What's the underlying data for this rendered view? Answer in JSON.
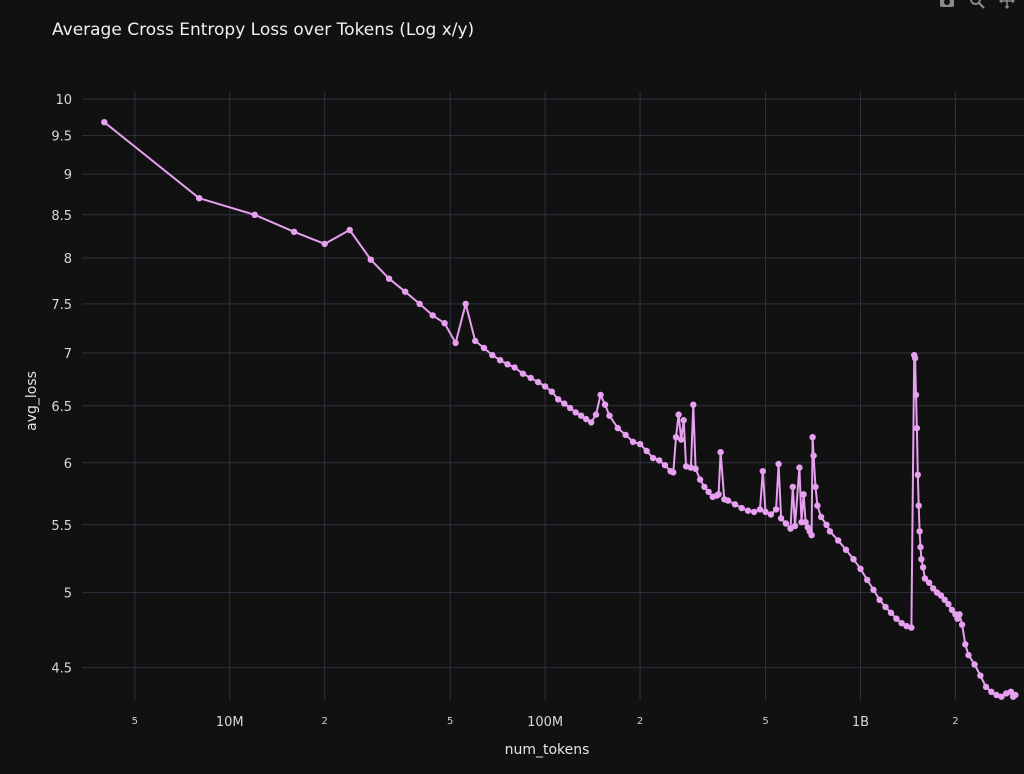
{
  "modebar": {
    "icons": [
      "camera-icon",
      "zoom-icon",
      "pan-icon"
    ],
    "color": "#8a8a8a"
  },
  "chart_data": {
    "type": "line",
    "title": "Average Cross Entropy Loss over Tokens (Log x/y)",
    "xlabel": "num_tokens",
    "ylabel": "avg_loss",
    "x_scale": "log",
    "y_scale": "log",
    "xlim": [
      3400000,
      3300000000
    ],
    "ylim": [
      4.3,
      10.1
    ],
    "grid": true,
    "legend": "none",
    "line_color": "#e79ff0",
    "background": "#111111",
    "grid_color": "#2f3240",
    "x_ticks": [
      {
        "value": 5000000,
        "label": "5",
        "minor": true
      },
      {
        "value": 10000000,
        "label": "10M",
        "minor": false
      },
      {
        "value": 20000000,
        "label": "2",
        "minor": true
      },
      {
        "value": 50000000,
        "label": "5",
        "minor": true
      },
      {
        "value": 100000000,
        "label": "100M",
        "minor": false
      },
      {
        "value": 200000000,
        "label": "2",
        "minor": true
      },
      {
        "value": 500000000,
        "label": "5",
        "minor": true
      },
      {
        "value": 1000000000,
        "label": "1B",
        "minor": false
      },
      {
        "value": 2000000000,
        "label": "2",
        "minor": true
      }
    ],
    "y_ticks": [
      {
        "value": 4.5,
        "label": "4.5"
      },
      {
        "value": 5,
        "label": "5"
      },
      {
        "value": 5.5,
        "label": "5.5"
      },
      {
        "value": 6,
        "label": "6"
      },
      {
        "value": 6.5,
        "label": "6.5"
      },
      {
        "value": 7,
        "label": "7"
      },
      {
        "value": 7.5,
        "label": "7.5"
      },
      {
        "value": 8,
        "label": "8"
      },
      {
        "value": 8.5,
        "label": "8.5"
      },
      {
        "value": 9,
        "label": "9"
      },
      {
        "value": 9.5,
        "label": "9.5"
      },
      {
        "value": 10,
        "label": "10"
      }
    ],
    "x": [
      4000000,
      8000000,
      12000000,
      16000000,
      20000000,
      24000000,
      28000000,
      32000000,
      36000000,
      40000000,
      44000000,
      48000000,
      52000000,
      56000000,
      60000000,
      64000000,
      68000000,
      72000000,
      76000000,
      80000000,
      85000000,
      90000000,
      95000000,
      100000000,
      105000000,
      110000000,
      115000000,
      120000000,
      125000000,
      130000000,
      135000000,
      140000000,
      145000000,
      150000000,
      155000000,
      160000000,
      170000000,
      180000000,
      190000000,
      200000000,
      210000000,
      220000000,
      230000000,
      240000000,
      250000000,
      255000000,
      260000000,
      265000000,
      270000000,
      275000000,
      280000000,
      290000000,
      295000000,
      300000000,
      310000000,
      320000000,
      330000000,
      340000000,
      350000000,
      355000000,
      360000000,
      370000000,
      380000000,
      400000000,
      420000000,
      440000000,
      460000000,
      480000000,
      490000000,
      500000000,
      520000000,
      540000000,
      550000000,
      560000000,
      580000000,
      600000000,
      610000000,
      620000000,
      640000000,
      650000000,
      660000000,
      670000000,
      680000000,
      690000000,
      700000000,
      705000000,
      710000000,
      720000000,
      730000000,
      750000000,
      780000000,
      800000000,
      850000000,
      900000000,
      950000000,
      1000000000,
      1050000000,
      1100000000,
      1150000000,
      1200000000,
      1250000000,
      1300000000,
      1350000000,
      1400000000,
      1450000000,
      1480000000,
      1490000000,
      1500000000,
      1510000000,
      1520000000,
      1530000000,
      1540000000,
      1550000000,
      1560000000,
      1580000000,
      1600000000,
      1650000000,
      1700000000,
      1750000000,
      1800000000,
      1850000000,
      1900000000,
      1950000000,
      2000000000,
      2030000000,
      2060000000,
      2100000000,
      2150000000,
      2200000000,
      2300000000,
      2400000000,
      2500000000,
      2600000000,
      2700000000,
      2800000000,
      2900000000,
      3000000000,
      3050000000,
      3100000000
    ],
    "values": [
      9.68,
      8.7,
      8.5,
      8.3,
      8.16,
      8.32,
      7.98,
      7.77,
      7.63,
      7.5,
      7.38,
      7.3,
      7.1,
      7.5,
      7.12,
      7.05,
      6.98,
      6.93,
      6.89,
      6.86,
      6.8,
      6.76,
      6.72,
      6.68,
      6.63,
      6.56,
      6.52,
      6.48,
      6.44,
      6.41,
      6.38,
      6.35,
      6.42,
      6.6,
      6.51,
      6.41,
      6.3,
      6.24,
      6.18,
      6.16,
      6.1,
      6.04,
      6.02,
      5.98,
      5.93,
      5.92,
      6.22,
      6.42,
      6.2,
      6.37,
      5.97,
      5.96,
      6.51,
      5.95,
      5.86,
      5.8,
      5.76,
      5.72,
      5.73,
      5.74,
      6.09,
      5.7,
      5.69,
      5.66,
      5.63,
      5.61,
      5.6,
      5.62,
      5.93,
      5.6,
      5.58,
      5.62,
      5.99,
      5.55,
      5.51,
      5.47,
      5.8,
      5.49,
      5.96,
      5.52,
      5.74,
      5.52,
      5.48,
      5.45,
      5.42,
      6.22,
      6.06,
      5.8,
      5.65,
      5.56,
      5.5,
      5.45,
      5.38,
      5.31,
      5.24,
      5.17,
      5.09,
      5.02,
      4.95,
      4.9,
      4.86,
      4.82,
      4.79,
      4.77,
      4.76,
      6.98,
      6.95,
      6.6,
      6.3,
      5.9,
      5.65,
      5.45,
      5.33,
      5.24,
      5.18,
      5.1,
      5.07,
      5.03,
      5.0,
      4.98,
      4.95,
      4.92,
      4.88,
      4.85,
      4.82,
      4.85,
      4.78,
      4.65,
      4.58,
      4.52,
      4.45,
      4.38,
      4.35,
      4.33,
      4.32,
      4.34,
      4.35,
      4.32,
      4.33
    ]
  }
}
